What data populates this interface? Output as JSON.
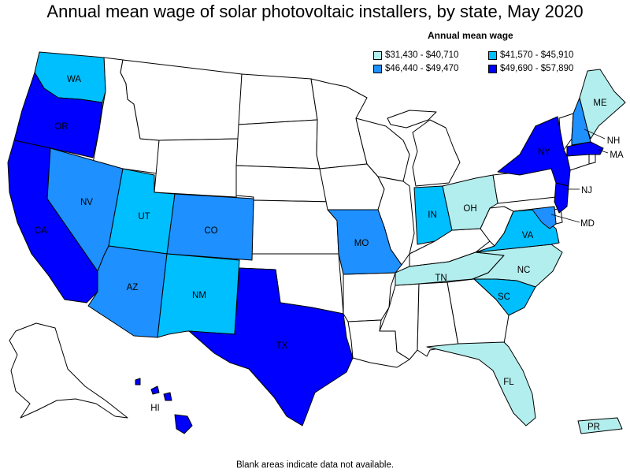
{
  "title": "Annual mean wage of solar photovoltaic installers, by state, May 2020",
  "legend": {
    "title": "Annual mean wage",
    "bins": [
      {
        "label": "$31,430 - $40,710",
        "color": "#b3eeee"
      },
      {
        "label": "$41,570 - $45,910",
        "color": "#00bfff"
      },
      {
        "label": "$46,440 - $49,470",
        "color": "#1e90ff"
      },
      {
        "label": "$49,690 - $57,890",
        "color": "#0000ff"
      }
    ]
  },
  "no_data_color": "#ffffff",
  "footnote": "Blank areas indicate data not available.",
  "states": [
    {
      "abbr": "WA",
      "bin": 1
    },
    {
      "abbr": "OR",
      "bin": 3
    },
    {
      "abbr": "CA",
      "bin": 3
    },
    {
      "abbr": "NV",
      "bin": 2
    },
    {
      "abbr": "UT",
      "bin": 1
    },
    {
      "abbr": "CO",
      "bin": 2
    },
    {
      "abbr": "AZ",
      "bin": 2
    },
    {
      "abbr": "NM",
      "bin": 1
    },
    {
      "abbr": "TX",
      "bin": 3
    },
    {
      "abbr": "MO",
      "bin": 2
    },
    {
      "abbr": "IN",
      "bin": 1
    },
    {
      "abbr": "OH",
      "bin": 0
    },
    {
      "abbr": "TN",
      "bin": 0
    },
    {
      "abbr": "NC",
      "bin": 0
    },
    {
      "abbr": "SC",
      "bin": 1
    },
    {
      "abbr": "VA",
      "bin": 1
    },
    {
      "abbr": "MD",
      "bin": 2
    },
    {
      "abbr": "NJ",
      "bin": 3
    },
    {
      "abbr": "NY",
      "bin": 3
    },
    {
      "abbr": "MA",
      "bin": 3
    },
    {
      "abbr": "NH",
      "bin": 2
    },
    {
      "abbr": "ME",
      "bin": 0
    },
    {
      "abbr": "FL",
      "bin": 0
    },
    {
      "abbr": "HI",
      "bin": 3
    },
    {
      "abbr": "PR",
      "bin": 0
    }
  ]
}
